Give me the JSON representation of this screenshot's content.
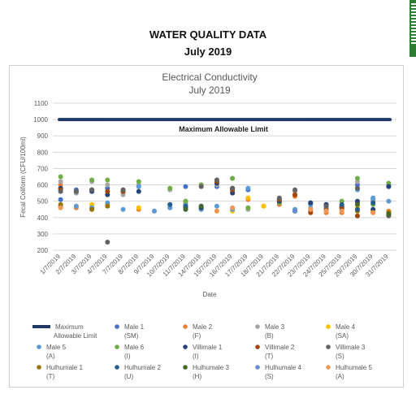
{
  "document": {
    "title": "WATER QUALITY DATA",
    "subtitle": "July 2019"
  },
  "chart_data": {
    "type": "scatter",
    "title": "Electrical Conductivity",
    "subtitle": "July 2019",
    "xlabel": "Date",
    "ylabel": "Fecal Coliform (CFU/100ml)",
    "ylim": [
      200,
      1100
    ],
    "yticks": [
      200,
      300,
      400,
      500,
      600,
      700,
      800,
      900,
      1000,
      1100
    ],
    "grid": true,
    "legend_position": "bottom",
    "categories": [
      "1/7/2019",
      "2/7/2019",
      "3/7/2019",
      "4/7/2019",
      "7/7/2019",
      "8/7/2019",
      "9/7/2019",
      "10/7/2019",
      "11/7/2019",
      "14/7/2019",
      "15/7/2019",
      "16/7/2019",
      "17/7/2019",
      "18/7/2019",
      "21/7/2019",
      "22/7/2019",
      "23/7/2019",
      "24/7/2019",
      "25/7/2019",
      "29/7/2019",
      "30/7/2019",
      "31/7/2019"
    ],
    "limit": {
      "name": "Maximum Allowable Limit",
      "value": 1000,
      "label": "Maximum Allowable Limit",
      "color": "#1f3864"
    },
    "legend": [
      {
        "label": "Maximum Allowable Limit",
        "color": "#1f3864",
        "kind": "line"
      },
      {
        "label": "Male 1 (SM)",
        "color": "#4472c4",
        "kind": "marker"
      },
      {
        "label": "Male 2 (F)",
        "color": "#ed7d31",
        "kind": "marker"
      },
      {
        "label": "Male 3 (B)",
        "color": "#a5a5a5",
        "kind": "marker"
      },
      {
        "label": "Male 4 (SA)",
        "color": "#ffc000",
        "kind": "marker"
      },
      {
        "label": "Male 5 (A)",
        "color": "#5b9bd5",
        "kind": "marker"
      },
      {
        "label": "Male 6 (I)",
        "color": "#70ad47",
        "kind": "marker"
      },
      {
        "label": "Villimale 1 (I)",
        "color": "#264478",
        "kind": "marker"
      },
      {
        "label": "Villimale 2 (T)",
        "color": "#9e480e",
        "kind": "marker"
      },
      {
        "label": "Villimale 3 (S)",
        "color": "#636363",
        "kind": "marker"
      },
      {
        "label": "Hulhumale 1 (T)",
        "color": "#997300",
        "kind": "marker"
      },
      {
        "label": "Hulhumale 2 (U)",
        "color": "#255e91",
        "kind": "marker"
      },
      {
        "label": "Hulhumale 3 (H)",
        "color": "#43682b",
        "kind": "marker"
      },
      {
        "label": "Hulhumale 4 (S)",
        "color": "#698ed0",
        "kind": "marker"
      },
      {
        "label": "Hulhumale 5 (A)",
        "color": "#f1975a",
        "kind": "marker"
      }
    ],
    "series": [
      {
        "name": "Male 1 (SM)",
        "color": "#4472c4",
        "values": [
          510,
          570,
          570,
          580,
          560,
          590,
          null,
          480,
          590,
          470,
          590,
          580,
          570,
          null,
          490,
          440,
          490,
          480,
          450,
          600,
          510,
          600
        ]
      },
      {
        "name": "Male 2 (F)",
        "color": "#ed7d31",
        "values": [
          600,
          460,
          460,
          540,
          570,
          450,
          null,
          460,
          500,
          450,
          620,
          560,
          510,
          470,
          480,
          530,
          440,
          430,
          430,
          490,
          440,
          440
        ]
      },
      {
        "name": "Male 3 (B)",
        "color": "#a5a5a5",
        "values": [
          620,
          550,
          620,
          600,
          540,
          600,
          440,
          570,
          490,
          600,
          600,
          640,
          450,
          null,
          510,
          560,
          460,
          470,
          470,
          620,
          500,
          590
        ]
      },
      {
        "name": "Male 4 (SA)",
        "color": "#ffc000",
        "values": [
          470,
          470,
          480,
          480,
          null,
          460,
          null,
          null,
          470,
          460,
          440,
          440,
          520,
          470,
          null,
          null,
          null,
          null,
          null,
          460,
          440,
          430
        ]
      },
      {
        "name": "Male 5 (A)",
        "color": "#5b9bd5",
        "values": [
          470,
          470,
          460,
          490,
          450,
          590,
          440,
          460,
          480,
          450,
          470,
          450,
          580,
          null,
          500,
          450,
          480,
          460,
          460,
          570,
          520,
          500
        ]
      },
      {
        "name": "Male 6 (I)",
        "color": "#70ad47",
        "values": [
          650,
          560,
          630,
          630,
          560,
          620,
          null,
          580,
          500,
          600,
          630,
          640,
          460,
          null,
          490,
          440,
          450,
          440,
          500,
          640,
          480,
          610
        ]
      },
      {
        "name": "Villimale 1 (I)",
        "color": "#264478",
        "values": [
          580,
          560,
          560,
          540,
          560,
          560,
          null,
          null,
          460,
          460,
          610,
          550,
          null,
          null,
          500,
          440,
          490,
          480,
          470,
          500,
          450,
          590
        ]
      },
      {
        "name": "Villimale 2 (T)",
        "color": "#9e480e",
        "values": [
          570,
          null,
          570,
          560,
          560,
          null,
          null,
          null,
          null,
          null,
          620,
          570,
          null,
          null,
          510,
          540,
          430,
          450,
          460,
          410,
          430,
          420
        ]
      },
      {
        "name": "Villimale 3 (S)",
        "color": "#636363",
        "values": [
          560,
          560,
          570,
          250,
          570,
          null,
          null,
          null,
          null,
          590,
          630,
          580,
          null,
          null,
          520,
          570,
          null,
          470,
          null,
          580,
          null,
          410
        ]
      },
      {
        "name": "Hulhumale 1 (T)",
        "color": "#997300",
        "values": [
          480,
          null,
          450,
          470,
          null,
          null,
          null,
          null,
          null,
          null,
          null,
          null,
          null,
          null,
          null,
          null,
          null,
          null,
          null,
          440,
          null,
          430
        ]
      },
      {
        "name": "Hulhumale 2 (U)",
        "color": "#255e91",
        "values": [
          null,
          null,
          null,
          null,
          null,
          null,
          null,
          480,
          470,
          null,
          null,
          null,
          null,
          null,
          null,
          null,
          null,
          null,
          480,
          450,
          490,
          null
        ]
      },
      {
        "name": "Hulhumale 3 (H)",
        "color": "#43682b",
        "values": [
          null,
          null,
          null,
          null,
          null,
          null,
          null,
          null,
          450,
          470,
          null,
          null,
          null,
          null,
          null,
          null,
          null,
          null,
          null,
          480,
          null,
          420
        ]
      },
      {
        "name": "Hulhumale 4 (S)",
        "color": "#698ed0",
        "values": [
          null,
          null,
          null,
          null,
          null,
          null,
          null,
          null,
          null,
          null,
          null,
          null,
          null,
          null,
          null,
          440,
          null,
          null,
          null,
          null,
          null,
          null
        ]
      },
      {
        "name": "Hulhumale 5 (A)",
        "color": "#f1975a",
        "values": [
          460,
          null,
          null,
          null,
          null,
          null,
          null,
          null,
          null,
          null,
          440,
          460,
          null,
          null,
          null,
          null,
          450,
          440,
          440,
          null,
          430,
          null
        ]
      }
    ]
  }
}
